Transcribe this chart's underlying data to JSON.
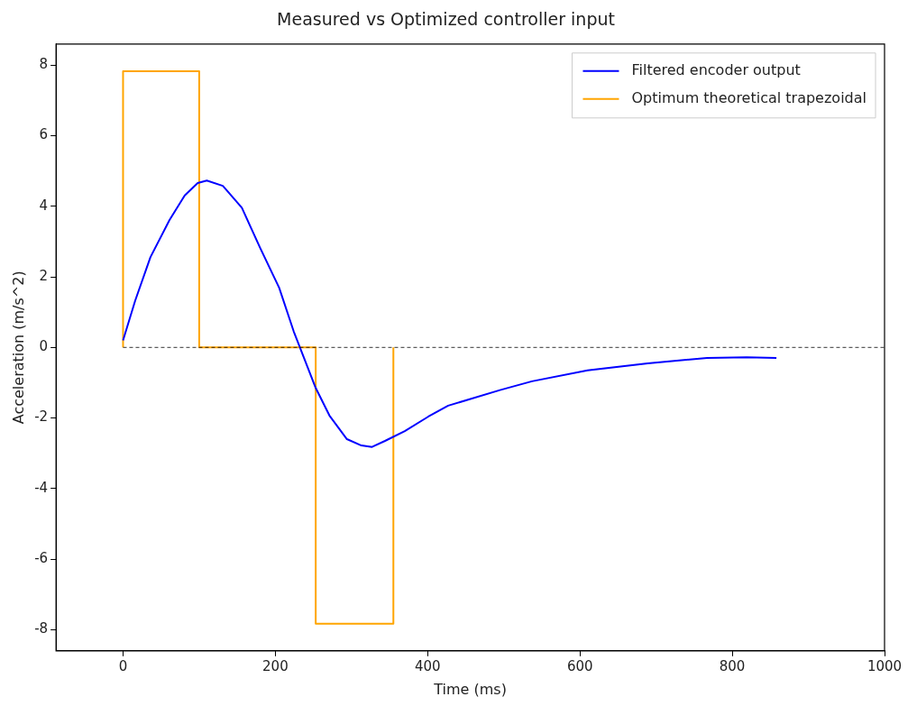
{
  "chart_data": {
    "type": "line",
    "title": "Measured vs Optimized controller input",
    "xlabel": "Time (ms)",
    "ylabel": "Acceleration (m/s^2)",
    "xlim": [
      -88,
      1000
    ],
    "xticks": [
      0,
      200,
      400,
      600,
      800,
      1000
    ],
    "ylim": [
      -8.6,
      8.6
    ],
    "yticks": [
      -8,
      -6,
      -4,
      -2,
      0,
      2,
      4,
      6,
      8
    ],
    "grid": false,
    "legend": "top right",
    "marker": "none",
    "series": [
      {
        "color": "#000000",
        "line_style": "dashed",
        "x": [
          0,
          1000
        ],
        "values": [
          0,
          0
        ]
      },
      {
        "name": "Filtered encoder output",
        "color": "#0000ff",
        "x": [
          0,
          16,
          36,
          61,
          81,
          98,
          110,
          131,
          156,
          180,
          205,
          224,
          253,
          271,
          294,
          313,
          327,
          344,
          370,
          401,
          427,
          495,
          537,
          610,
          689,
          767,
          819,
          858
        ],
        "values": [
          0.2,
          1.33,
          2.56,
          3.61,
          4.31,
          4.66,
          4.73,
          4.58,
          3.96,
          2.82,
          1.69,
          0.46,
          -1.15,
          -1.93,
          -2.6,
          -2.78,
          -2.82,
          -2.65,
          -2.37,
          -1.96,
          -1.65,
          -1.21,
          -0.96,
          -0.65,
          -0.45,
          -0.3,
          -0.28,
          -0.3
        ]
      },
      {
        "name": "Optimum theoretical trapezoidal",
        "color": "#ffa500",
        "x": [
          0,
          0,
          100,
          100,
          253,
          253,
          355,
          355
        ],
        "values": [
          0,
          7.83,
          7.83,
          0,
          0,
          -7.83,
          -7.83,
          0
        ]
      }
    ]
  }
}
